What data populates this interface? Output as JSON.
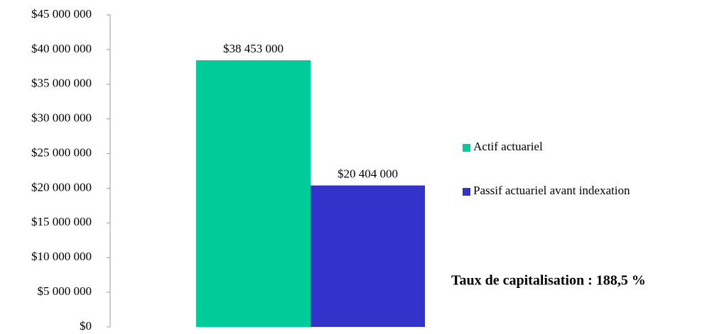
{
  "chart_data": {
    "type": "bar",
    "categories": [
      null
    ],
    "series": [
      {
        "name": "Actif actuariel",
        "color": "#00cc99",
        "values": [
          38453000
        ],
        "value_labels": [
          "$38 453 000"
        ]
      },
      {
        "name": "Passif actuariel avant indexation",
        "color": "#3333cc",
        "values": [
          20404000
        ],
        "value_labels": [
          "$20 404 000"
        ]
      }
    ],
    "ylim": [
      0,
      45000000
    ],
    "yticks": [
      {
        "value": 0,
        "label": "$0"
      },
      {
        "value": 5000000,
        "label": "$5 000 000"
      },
      {
        "value": 10000000,
        "label": "$10 000 000"
      },
      {
        "value": 15000000,
        "label": "$15 000 000"
      },
      {
        "value": 20000000,
        "label": "$20 000 000"
      },
      {
        "value": 25000000,
        "label": "$25 000 000"
      },
      {
        "value": 30000000,
        "label": "$30 000 000"
      },
      {
        "value": 35000000,
        "label": "$35 000 000"
      },
      {
        "value": 40000000,
        "label": "$40 000 000"
      },
      {
        "value": 45000000,
        "label": "$45 000 000"
      }
    ],
    "legend": "right",
    "annotation": "Taux de capitalisation : 188,5 %"
  }
}
